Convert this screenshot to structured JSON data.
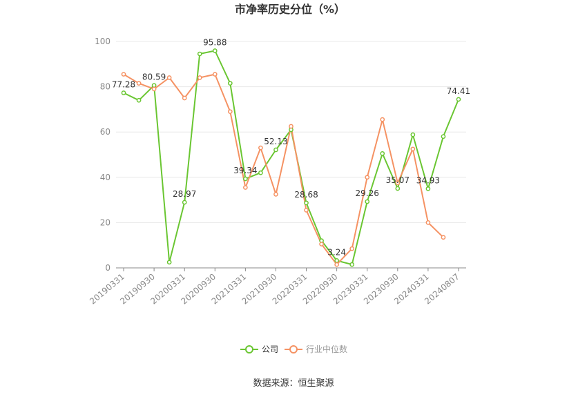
{
  "chart_data": {
    "type": "line",
    "title": "市净率历史分位（%）",
    "source": "数据来源：恒生聚源",
    "ylim": [
      0,
      100
    ],
    "yticks": [
      0,
      20,
      40,
      60,
      80,
      100
    ],
    "grid": true,
    "legend_position": "bottom",
    "x": [
      "20190331",
      "20190630",
      "20190930",
      "20191231",
      "20200331",
      "20200630",
      "20200930",
      "20201231",
      "20210331",
      "20210630",
      "20210930",
      "20211231",
      "20220331",
      "20220630",
      "20220930",
      "20221231",
      "20230331",
      "20230630",
      "20230930",
      "20231231",
      "20240331",
      "20240630",
      "20240807"
    ],
    "xtick_labels": [
      "20190331",
      "20190930",
      "20200331",
      "20200930",
      "20210331",
      "20210930",
      "20220331",
      "20220930",
      "20230331",
      "20230930",
      "20240331",
      "20240807"
    ],
    "series": [
      {
        "name": "公司",
        "color": "#6ac632",
        "values": [
          77.28,
          74.0,
          80.59,
          2.5,
          28.97,
          94.5,
          95.88,
          81.5,
          39.34,
          42.0,
          52.13,
          61.0,
          28.68,
          12.0,
          3.24,
          1.5,
          29.26,
          50.5,
          35.07,
          58.8,
          34.93,
          58.0,
          74.41
        ]
      },
      {
        "name": "行业中位数",
        "color": "#f59263",
        "values": [
          85.5,
          81.5,
          79.0,
          84.0,
          75.0,
          84.0,
          85.5,
          69.0,
          35.5,
          53.0,
          32.5,
          62.5,
          25.5,
          10.5,
          1.5,
          8.5,
          40.0,
          65.5,
          37.5,
          52.5,
          20.0,
          13.5,
          null
        ]
      }
    ],
    "data_labels": [
      {
        "series": 0,
        "index": 0,
        "text": "77.28"
      },
      {
        "series": 0,
        "index": 2,
        "text": "80.59"
      },
      {
        "series": 0,
        "index": 4,
        "text": "28.97"
      },
      {
        "series": 0,
        "index": 6,
        "text": "95.88"
      },
      {
        "series": 0,
        "index": 8,
        "text": "39.34"
      },
      {
        "series": 0,
        "index": 10,
        "text": "52.13"
      },
      {
        "series": 0,
        "index": 12,
        "text": "28.68"
      },
      {
        "series": 0,
        "index": 14,
        "text": "3.24"
      },
      {
        "series": 0,
        "index": 16,
        "text": "29.26"
      },
      {
        "series": 0,
        "index": 18,
        "text": "35.07"
      },
      {
        "series": 0,
        "index": 20,
        "text": "34.93"
      },
      {
        "series": 0,
        "index": 22,
        "text": "74.41"
      }
    ]
  }
}
